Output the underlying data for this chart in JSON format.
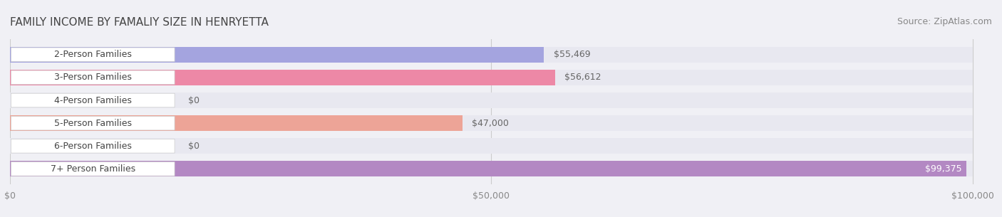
{
  "title": "FAMILY INCOME BY FAMALIY SIZE IN HENRYETTA",
  "source": "Source: ZipAtlas.com",
  "categories": [
    "2-Person Families",
    "3-Person Families",
    "4-Person Families",
    "5-Person Families",
    "6-Person Families",
    "7+ Person Families"
  ],
  "values": [
    55469,
    56612,
    0,
    47000,
    0,
    99375
  ],
  "bar_colors": [
    "#9999dd",
    "#ee7799",
    "#ffcc99",
    "#ee9988",
    "#aabbee",
    "#aa77bb"
  ],
  "label_colors": [
    "#9999dd",
    "#ee7799",
    "#ffcc99",
    "#ee9988",
    "#aabbee",
    "#aa77bb"
  ],
  "xlim": [
    0,
    100000
  ],
  "xticks": [
    0,
    50000,
    100000
  ],
  "xtick_labels": [
    "$0",
    "$50,000",
    "$100,000"
  ],
  "value_labels": [
    "$55,469",
    "$56,612",
    "$0",
    "$47,000",
    "$0",
    "$99,375"
  ],
  "background_color": "#f0f0f5",
  "bar_bg_color": "#e8e8f0",
  "title_fontsize": 11,
  "source_fontsize": 9,
  "label_fontsize": 9,
  "value_fontsize": 9,
  "tick_fontsize": 9
}
